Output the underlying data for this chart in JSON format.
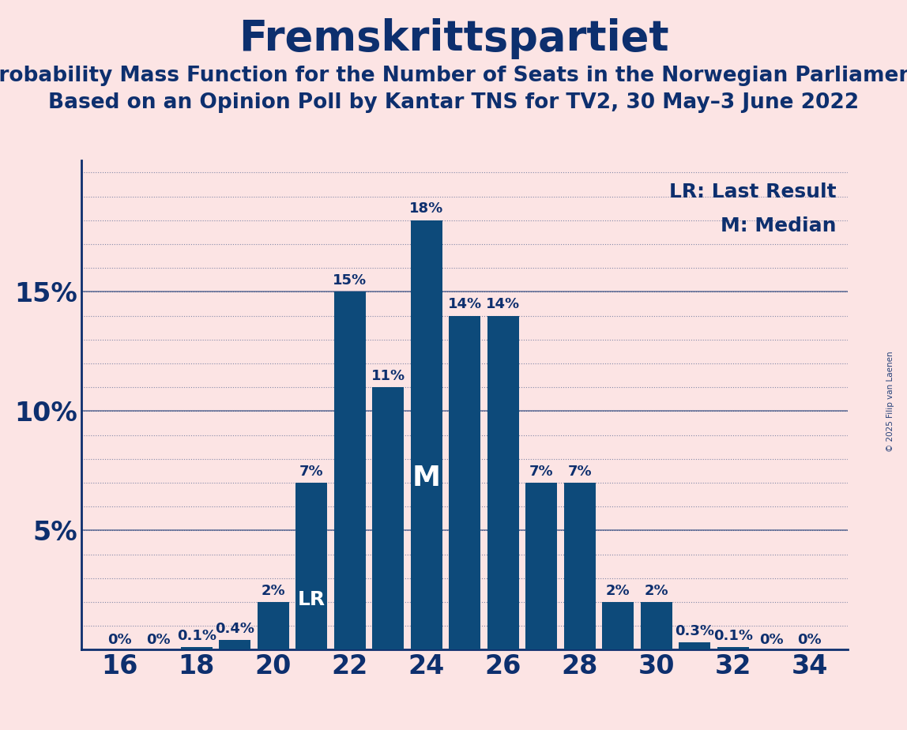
{
  "title": "Fremskrittspartiet",
  "subtitle1": "Probability Mass Function for the Number of Seats in the Norwegian Parliament",
  "subtitle2": "Based on an Opinion Poll by Kantar TNS for TV2, 30 May–3 June 2022",
  "copyright": "© 2025 Filip van Laenen",
  "legend_lr": "LR: Last Result",
  "legend_m": "M: Median",
  "seats": [
    16,
    17,
    18,
    19,
    20,
    21,
    22,
    23,
    24,
    25,
    26,
    27,
    28,
    29,
    30,
    31,
    32,
    33,
    34
  ],
  "values": [
    0.0,
    0.0,
    0.001,
    0.004,
    0.02,
    0.07,
    0.15,
    0.11,
    0.18,
    0.14,
    0.14,
    0.07,
    0.07,
    0.02,
    0.02,
    0.003,
    0.001,
    0.0,
    0.0
  ],
  "labels": [
    "0%",
    "0%",
    "0.1%",
    "0.4%",
    "2%",
    "7%",
    "15%",
    "11%",
    "18%",
    "14%",
    "14%",
    "7%",
    "7%",
    "2%",
    "2%",
    "0.3%",
    "0.1%",
    "0%",
    "0%"
  ],
  "lr_seat": 21,
  "median_seat": 24,
  "bar_color": "#0d4a7a",
  "background_color": "#fce4e4",
  "text_color": "#0d2f6e",
  "grid_color": "#0d2f6e",
  "ylim": [
    0,
    0.205
  ],
  "yticks": [
    0.05,
    0.1,
    0.15
  ],
  "ytick_labels": [
    "5%",
    "10%",
    "15%"
  ],
  "xlabel_fontsize": 24,
  "ylabel_fontsize": 24,
  "title_fontsize": 38,
  "subtitle_fontsize": 19,
  "bar_label_fontsize": 13,
  "legend_fontsize": 18,
  "annotation_fontsize_lr": 18,
  "annotation_fontsize_m": 26
}
